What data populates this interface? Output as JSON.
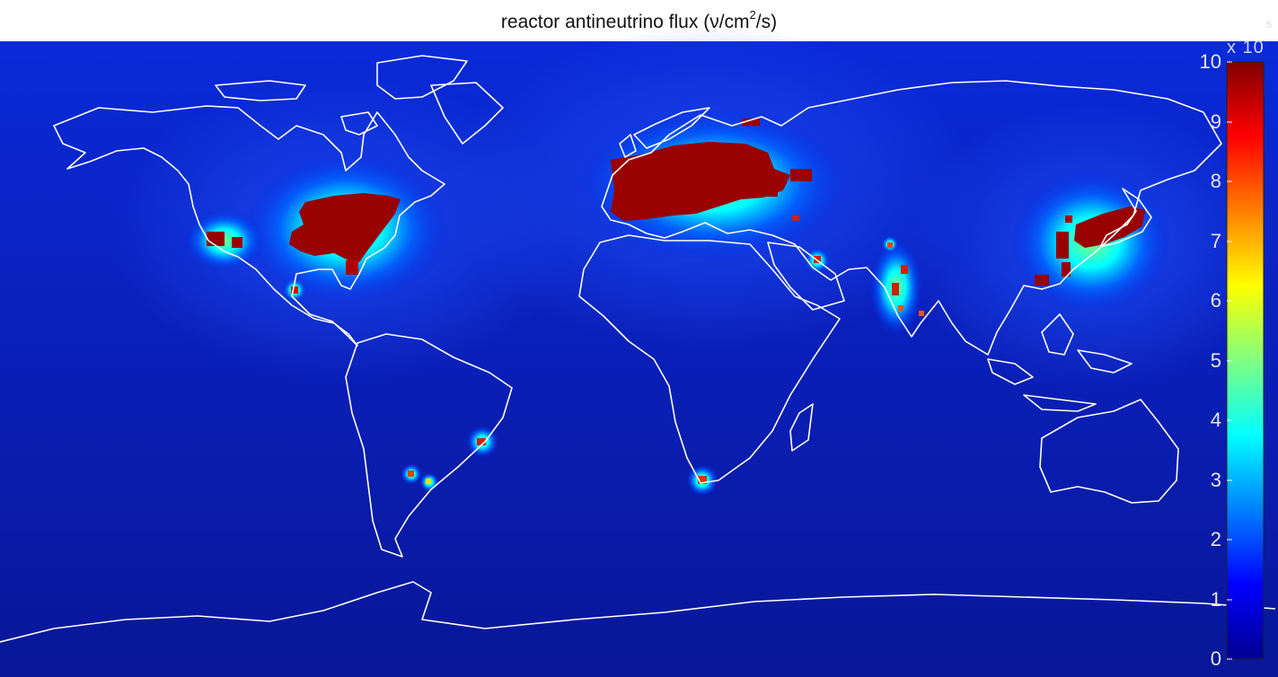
{
  "title": {
    "prefix": "reactor antineutrino flux (ν/cm",
    "superscript": "2",
    "suffix": "/s)"
  },
  "colorbar": {
    "ticks": [
      "0",
      "1",
      "2",
      "3",
      "4",
      "5",
      "6",
      "7",
      "8",
      "9",
      "10"
    ],
    "multiplier_label": "x 10",
    "multiplier_exponent": "5",
    "colormap": "jet",
    "range": [
      0,
      10
    ]
  },
  "map": {
    "projection": "equirectangular",
    "coastline_color": "#ffffff",
    "background_color": "#0a1ea8"
  },
  "hotspots": [
    {
      "name": "eastern-united-states",
      "level": 10
    },
    {
      "name": "california",
      "level": 10
    },
    {
      "name": "texas-gulf",
      "level": 9
    },
    {
      "name": "mexico",
      "level": 8
    },
    {
      "name": "europe",
      "level": 10
    },
    {
      "name": "russia",
      "level": 9
    },
    {
      "name": "ukraine",
      "level": 9
    },
    {
      "name": "iran",
      "level": 7
    },
    {
      "name": "pakistan",
      "level": 7
    },
    {
      "name": "india",
      "level": 8
    },
    {
      "name": "china",
      "level": 10
    },
    {
      "name": "japan",
      "level": 10
    },
    {
      "name": "korea",
      "level": 10
    },
    {
      "name": "taiwan",
      "level": 9
    },
    {
      "name": "brazil",
      "level": 8
    },
    {
      "name": "argentina",
      "level": 7
    },
    {
      "name": "south-africa",
      "level": 8
    }
  ]
}
